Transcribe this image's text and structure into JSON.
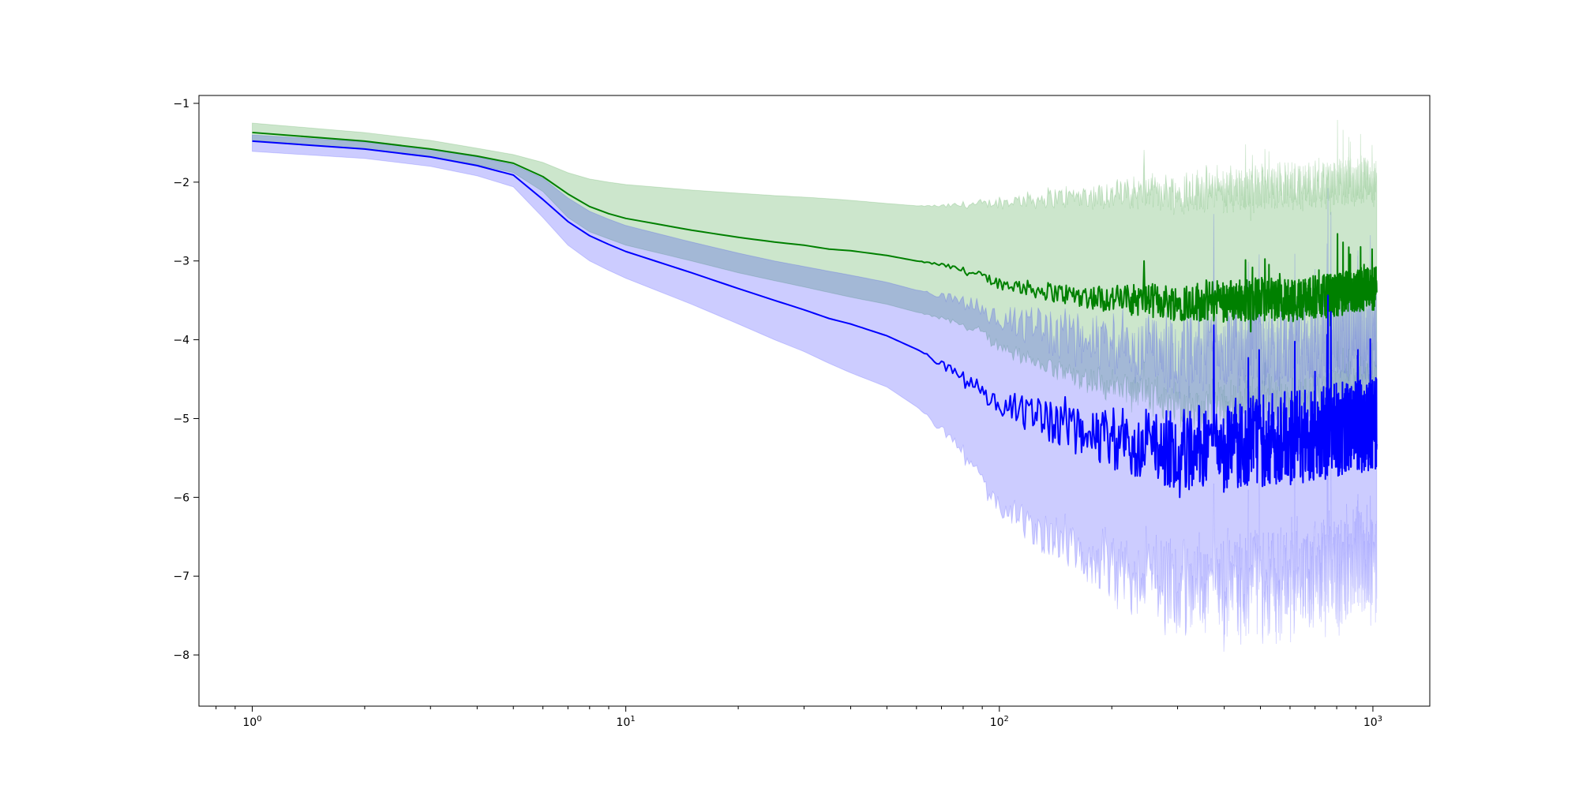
{
  "chart_data": {
    "type": "line",
    "title": "",
    "xlabel": "",
    "ylabel": "",
    "xscale": "log",
    "xlim": [
      0.72,
      1420
    ],
    "ylim": [
      -8.65,
      -0.9
    ],
    "grid": false,
    "legend": "none",
    "x_ticks": [
      {
        "base": "10",
        "exp": "0",
        "value": 1
      },
      {
        "base": "10",
        "exp": "1",
        "value": 10
      },
      {
        "base": "10",
        "exp": "2",
        "value": 100
      },
      {
        "base": "10",
        "exp": "3",
        "value": 1000
      }
    ],
    "y_ticks": [
      {
        "label": "−1",
        "value": -1
      },
      {
        "label": "−2",
        "value": -2
      },
      {
        "label": "−3",
        "value": -3
      },
      {
        "label": "−4",
        "value": -4
      },
      {
        "label": "−5",
        "value": -5
      },
      {
        "label": "−6",
        "value": -6
      },
      {
        "label": "−7",
        "value": -7
      },
      {
        "label": "−8",
        "value": -8
      }
    ],
    "series": [
      {
        "color": "#008000",
        "band_color": "#008000",
        "band_opacity": 0.2,
        "x": [
          1,
          2,
          3,
          4,
          5,
          6,
          7,
          8,
          9,
          10,
          15,
          20,
          25,
          30,
          35,
          40,
          50,
          60,
          70,
          80,
          90,
          100,
          120,
          150,
          200,
          250,
          300,
          400,
          500,
          600,
          700,
          800,
          900,
          1000
        ],
        "mean": [
          -1.37,
          -1.48,
          -1.58,
          -1.67,
          -1.76,
          -1.93,
          -2.15,
          -2.31,
          -2.4,
          -2.46,
          -2.61,
          -2.7,
          -2.76,
          -2.8,
          -2.85,
          -2.87,
          -2.93,
          -3.0,
          -3.05,
          -3.12,
          -3.2,
          -3.28,
          -3.35,
          -3.42,
          -3.48,
          -3.5,
          -3.52,
          -3.5,
          -3.48,
          -3.5,
          -3.46,
          -3.43,
          -3.38,
          -3.35
        ],
        "upper": [
          -1.25,
          -1.37,
          -1.47,
          -1.57,
          -1.65,
          -1.75,
          -1.88,
          -1.96,
          -2.0,
          -2.03,
          -2.1,
          -2.14,
          -2.17,
          -2.19,
          -2.21,
          -2.23,
          -2.27,
          -2.3,
          -2.31,
          -2.3,
          -2.29,
          -2.27,
          -2.24,
          -2.22,
          -2.2,
          -2.18,
          -2.18,
          -2.15,
          -2.13,
          -2.12,
          -2.1,
          -2.08,
          -2.05,
          -2.05
        ],
        "lower": [
          -1.47,
          -1.58,
          -1.68,
          -1.78,
          -1.88,
          -2.12,
          -2.45,
          -2.63,
          -2.72,
          -2.8,
          -3.0,
          -3.15,
          -3.25,
          -3.33,
          -3.4,
          -3.46,
          -3.55,
          -3.65,
          -3.72,
          -3.8,
          -3.9,
          -4.05,
          -4.2,
          -4.35,
          -4.5,
          -4.6,
          -4.7,
          -4.72,
          -4.72,
          -4.7,
          -4.65,
          -4.6,
          -4.55,
          -4.5
        ]
      },
      {
        "color": "#0000ff",
        "band_color": "#0000ff",
        "band_opacity": 0.2,
        "x": [
          1,
          2,
          3,
          4,
          5,
          6,
          7,
          8,
          9,
          10,
          15,
          20,
          25,
          30,
          35,
          40,
          50,
          60,
          70,
          80,
          90,
          100,
          120,
          150,
          200,
          250,
          300,
          400,
          500,
          600,
          700,
          800,
          900,
          1000
        ],
        "mean": [
          -1.48,
          -1.58,
          -1.68,
          -1.79,
          -1.91,
          -2.22,
          -2.5,
          -2.68,
          -2.79,
          -2.88,
          -3.15,
          -3.35,
          -3.5,
          -3.62,
          -3.73,
          -3.8,
          -3.95,
          -4.12,
          -4.3,
          -4.5,
          -4.65,
          -4.8,
          -4.95,
          -5.1,
          -5.25,
          -5.35,
          -5.38,
          -5.35,
          -5.3,
          -5.25,
          -5.2,
          -5.15,
          -5.1,
          -5.05
        ],
        "upper": [
          -1.4,
          -1.49,
          -1.58,
          -1.68,
          -1.78,
          -1.95,
          -2.2,
          -2.37,
          -2.47,
          -2.55,
          -2.76,
          -2.9,
          -3.0,
          -3.07,
          -3.13,
          -3.18,
          -3.27,
          -3.37,
          -3.45,
          -3.55,
          -3.65,
          -3.75,
          -3.88,
          -4.02,
          -4.15,
          -4.2,
          -4.22,
          -4.2,
          -4.18,
          -4.15,
          -4.1,
          -4.05,
          -4.0,
          -3.98
        ],
        "lower": [
          -1.61,
          -1.7,
          -1.8,
          -1.92,
          -2.06,
          -2.45,
          -2.8,
          -3.0,
          -3.12,
          -3.22,
          -3.55,
          -3.8,
          -4.0,
          -4.15,
          -4.3,
          -4.42,
          -4.6,
          -4.85,
          -5.1,
          -5.4,
          -5.7,
          -6.0,
          -6.3,
          -6.5,
          -6.7,
          -6.8,
          -6.85,
          -6.85,
          -6.8,
          -6.75,
          -6.7,
          -6.65,
          -6.6,
          -6.55
        ]
      }
    ]
  }
}
